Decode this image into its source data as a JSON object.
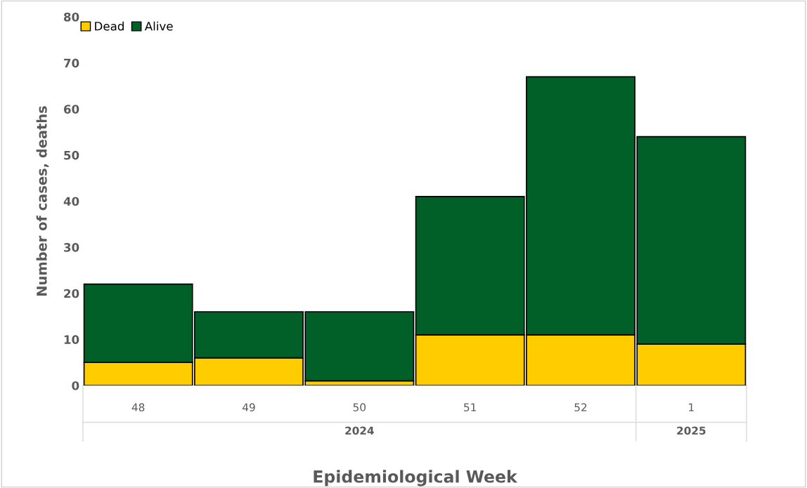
{
  "chart_data": {
    "type": "bar",
    "stacked": true,
    "xlabel": "Epidemiological Week",
    "ylabel": "Number of cases, deaths",
    "categories": [
      "48",
      "49",
      "50",
      "51",
      "52",
      "1"
    ],
    "series": [
      {
        "name": "Dead",
        "color": "#ffcc00",
        "values": [
          5,
          6,
          1,
          11,
          11,
          9
        ]
      },
      {
        "name": "Alive",
        "color": "#006028",
        "values": [
          17,
          10,
          15,
          30,
          56,
          45
        ]
      }
    ],
    "ylim": [
      0,
      80
    ],
    "yticks": [
      0,
      10,
      20,
      30,
      40,
      50,
      60,
      70,
      80
    ],
    "grid": false,
    "legend": "top left",
    "annotations": [
      "2024",
      "2025"
    ]
  }
}
